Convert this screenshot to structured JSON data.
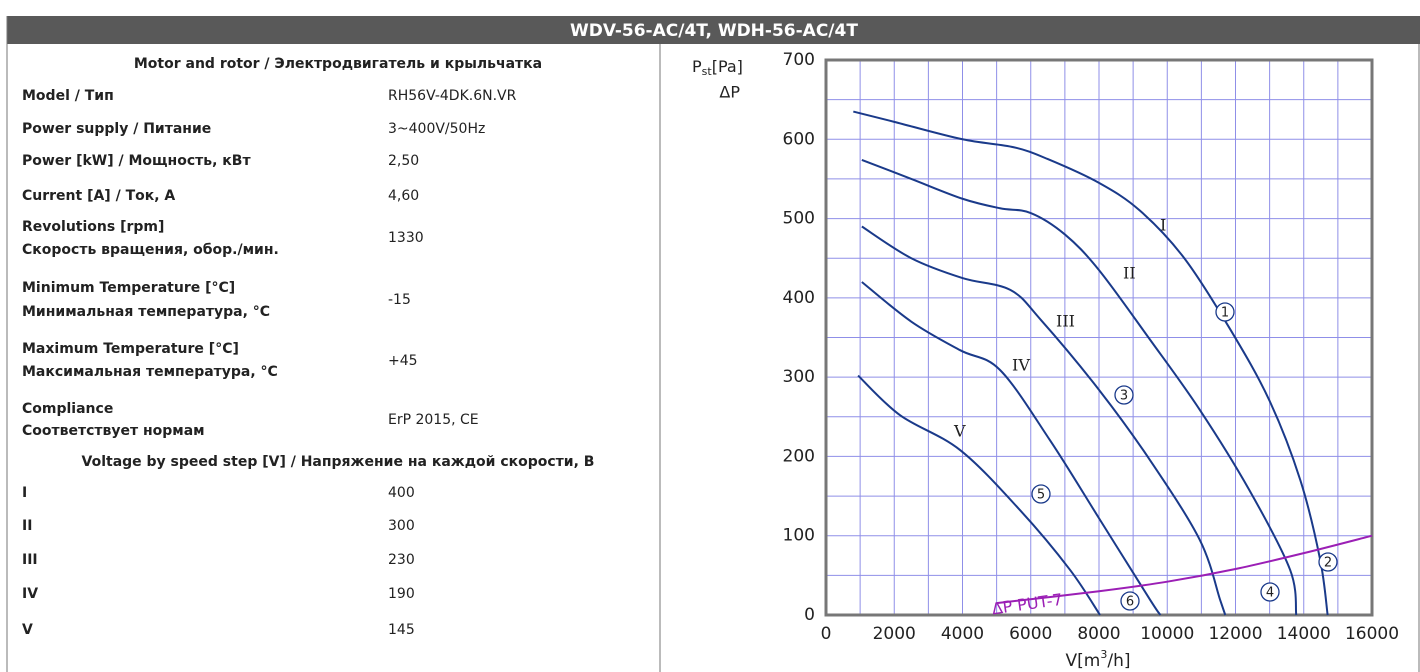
{
  "header": {
    "title": "WDV-56-AC/4T, WDH-56-AC/4T"
  },
  "table": {
    "title": "Motor and rotor / Электродвигатель и крыльчатка",
    "rows": [
      [
        "Model / Тип",
        "RH56V-4DK.6N.VR"
      ],
      [
        "Power supply / Питание",
        "3~400V/50Hz"
      ],
      [
        "Power [kW] / Мощность, кВт",
        "2,50"
      ],
      [
        "Current [A] / Ток, А",
        "4,60"
      ],
      [
        "Revolutions [rpm]",
        "Скорость вращения, обор./мин.",
        "1330"
      ],
      [
        "Minimum Temperature [°C]",
        "Минимальная температура, °C",
        "-15"
      ],
      [
        "Maximum Temperature [°C]",
        "Максимальная температура, °C",
        "+45"
      ],
      [
        "Compliance",
        "Соответствует нормам",
        "ErP 2015, CE"
      ]
    ],
    "section": "Voltage by speed step [V] / Напряжение на каждой скорости, В",
    "steps": [
      [
        "I",
        "400"
      ],
      [
        "II",
        "300"
      ],
      [
        "III",
        "230"
      ],
      [
        "IV",
        "190"
      ],
      [
        "V",
        "145"
      ]
    ]
  },
  "chart_data": {
    "type": "line",
    "y_label": [
      "P",
      "st",
      "[Pa]"
    ],
    "y_label2": "ΔP",
    "x_label": [
      "V[m",
      "3",
      "/h]"
    ],
    "xlim": [
      0,
      16000
    ],
    "ylim": [
      0,
      700
    ],
    "xticks": [
      0,
      2000,
      4000,
      6000,
      8000,
      10000,
      12000,
      14000,
      16000
    ],
    "yticks": [
      0,
      100,
      200,
      300,
      400,
      500,
      600,
      700
    ],
    "xgrid": [
      1000,
      2000,
      3000,
      4000,
      5000,
      6000,
      7000,
      8000,
      9000,
      10000,
      11000,
      12000,
      13000,
      14000,
      15000
    ],
    "ygrid": [
      50,
      100,
      150,
      200,
      250,
      300,
      350,
      400,
      450,
      500,
      550,
      600,
      650
    ],
    "grid": true,
    "series": [
      {
        "name": "I",
        "color": "#1a3a8a",
        "x": [
          800,
          2000,
          4000,
          5500,
          6500,
          8000,
          9200,
          10500,
          11850,
          13000,
          13900,
          14480,
          14700
        ],
        "values": [
          635,
          622,
          600,
          590,
          575,
          545,
          510,
          450,
          360,
          270,
          170,
          70,
          0
        ]
      },
      {
        "name": "II",
        "color": "#1a3a8a",
        "x": [
          1050,
          2500,
          4000,
          5100,
          6000,
          7000,
          8000,
          9500,
          10950,
          12400,
          13600,
          13780
        ],
        "values": [
          574,
          550,
          525,
          513,
          507,
          480,
          435,
          347,
          259,
          158,
          57,
          0
        ]
      },
      {
        "name": "III",
        "color": "#1a3a8a",
        "x": [
          1050,
          2500,
          4000,
          5400,
          6300,
          8000,
          9500,
          10950,
          11550,
          11700
        ],
        "values": [
          490,
          450,
          425,
          410,
          372,
          284,
          195,
          95,
          19,
          0
        ]
      },
      {
        "name": "IV",
        "color": "#1a3a8a",
        "x": [
          1050,
          2500,
          3930,
          5100,
          6570,
          8030,
          9500,
          9800
        ],
        "values": [
          420,
          370,
          334,
          309,
          220,
          120,
          19,
          0
        ]
      },
      {
        "name": "V",
        "color": "#1a3a8a",
        "x": [
          940,
          2170,
          3930,
          5690,
          7150,
          8030
        ],
        "values": [
          302,
          252,
          208,
          132,
          57,
          0
        ]
      },
      {
        "name": "ΔP PUT-7",
        "color": "#9b1fb5",
        "x": [
          5000,
          8000,
          10000,
          12000,
          14000,
          16000
        ],
        "values": [
          15,
          30,
          42,
          58,
          78,
          100
        ]
      }
    ],
    "markers": [
      "1",
      "2",
      "3",
      "4",
      "5",
      "6"
    ]
  }
}
